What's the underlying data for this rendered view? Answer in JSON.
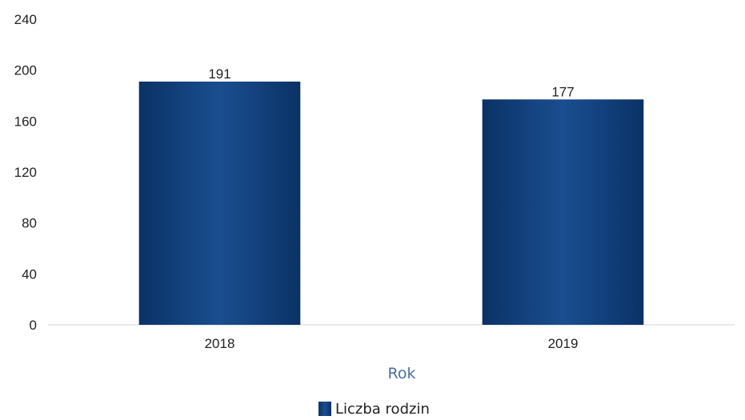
{
  "chart_data": {
    "type": "bar",
    "title": "",
    "xlabel": "Rok",
    "ylabel": "",
    "categories": [
      "2018",
      "2019"
    ],
    "series": [
      {
        "name": "Liczba rodzin",
        "values": [
          191,
          177
        ]
      }
    ],
    "data_labels": [
      "191",
      "177"
    ],
    "ylim": [
      0,
      240
    ],
    "yticks": [
      0,
      40,
      80,
      120,
      160,
      200,
      240
    ],
    "ytick_labels": [
      "0",
      "40",
      "80",
      "120",
      "160",
      "200",
      "240"
    ],
    "grid": false,
    "legend": "bottom-center",
    "colors": {
      "bar": "#0f3d78",
      "bar_highlight": "#1e5296",
      "axis_title": "#4a6f9e",
      "axis_line": "#d9d9d9"
    }
  }
}
